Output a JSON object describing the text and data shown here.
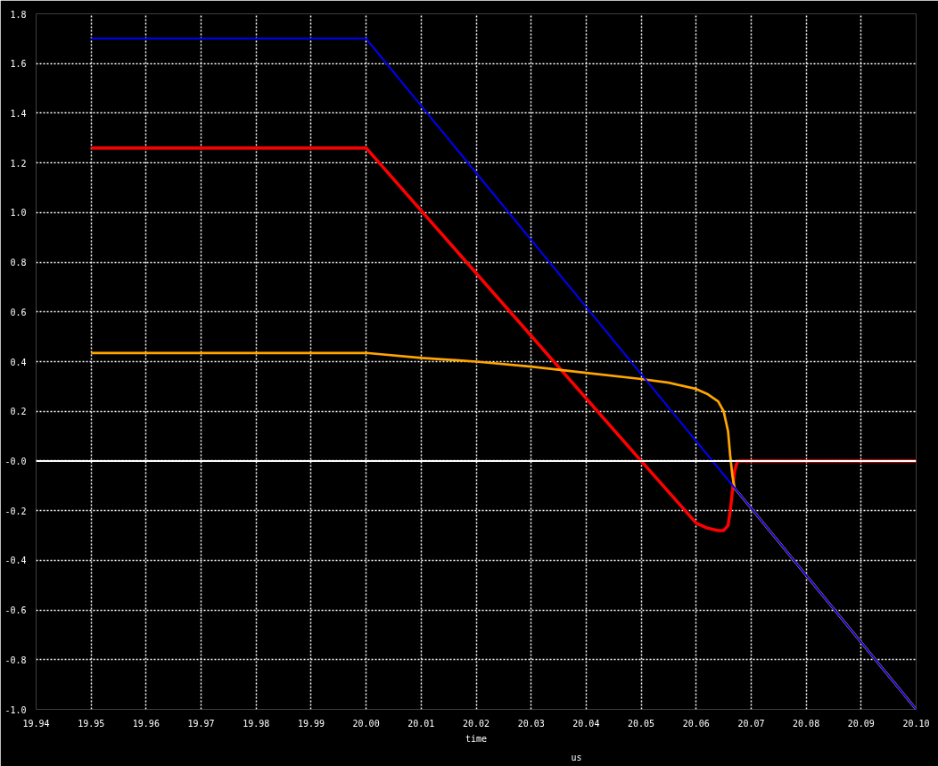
{
  "chart_data": {
    "type": "line",
    "xlabel": "time",
    "annotations": [
      "us"
    ],
    "xlim": [
      19.94,
      20.1
    ],
    "ylim": [
      -1.0,
      1.8
    ],
    "xticks": [
      {
        "value": 19.94,
        "label": "19.94"
      },
      {
        "value": 19.95,
        "label": "19.95"
      },
      {
        "value": 19.96,
        "label": "19.96"
      },
      {
        "value": 19.97,
        "label": "19.97"
      },
      {
        "value": 19.98,
        "label": "19.98"
      },
      {
        "value": 19.99,
        "label": "19.99"
      },
      {
        "value": 20.0,
        "label": "20.00"
      },
      {
        "value": 20.01,
        "label": "20.01"
      },
      {
        "value": 20.02,
        "label": "20.02"
      },
      {
        "value": 20.03,
        "label": "20.03"
      },
      {
        "value": 20.04,
        "label": "20.04"
      },
      {
        "value": 20.05,
        "label": "20.05"
      },
      {
        "value": 20.06,
        "label": "20.06"
      },
      {
        "value": 20.07,
        "label": "20.07"
      },
      {
        "value": 20.08,
        "label": "20.08"
      },
      {
        "value": 20.09,
        "label": "20.09"
      },
      {
        "value": 20.1,
        "label": "20.10"
      }
    ],
    "yticks": [
      {
        "value": -1.0,
        "label": "-1.0"
      },
      {
        "value": -0.8,
        "label": "-0.8"
      },
      {
        "value": -0.6,
        "label": "-0.6"
      },
      {
        "value": -0.4,
        "label": "-0.4"
      },
      {
        "value": -0.2,
        "label": "-0.2"
      },
      {
        "value": 0,
        "label": "-0.0"
      },
      {
        "value": 0.2,
        "label": "0.2"
      },
      {
        "value": 0.4,
        "label": "0.4"
      },
      {
        "value": 0.6,
        "label": "0.6"
      },
      {
        "value": 0.8,
        "label": "0.8"
      },
      {
        "value": 1.0,
        "label": "1.0"
      },
      {
        "value": 1.2,
        "label": "1.2"
      },
      {
        "value": 1.4,
        "label": "1.4"
      },
      {
        "value": 1.6,
        "label": "1.6"
      },
      {
        "value": 1.8,
        "label": "1.8"
      }
    ],
    "grid": true,
    "line_style": "solid",
    "ref_lines": [
      {
        "axis": "y",
        "value": 0,
        "color": "#ffffff"
      }
    ],
    "series": [
      {
        "color": "#ff0000",
        "x": [
          19.95,
          20.0,
          20.05,
          20.06,
          20.062,
          20.064,
          20.065,
          20.0658,
          20.0662,
          20.0666,
          20.067,
          20.0675,
          20.1
        ],
        "values": [
          1.26,
          1.26,
          0.0,
          -0.25,
          -0.27,
          -0.28,
          -0.28,
          -0.26,
          -0.2,
          -0.12,
          -0.04,
          0.0,
          0.0
        ]
      },
      {
        "color": "#ffa500",
        "x": [
          19.95,
          20.0,
          20.01,
          20.02,
          20.03,
          20.04,
          20.05,
          20.055,
          20.06,
          20.062,
          20.064,
          20.065,
          20.0658,
          20.0662,
          20.0666,
          20.067,
          20.068,
          20.1
        ],
        "values": [
          0.435,
          0.435,
          0.415,
          0.4,
          0.38,
          0.355,
          0.33,
          0.315,
          0.29,
          0.27,
          0.24,
          0.2,
          0.12,
          0.02,
          -0.06,
          -0.11,
          -0.136,
          -1.0
        ]
      },
      {
        "color": "#0000ff",
        "x": [
          19.95,
          20.0,
          20.1
        ],
        "values": [
          1.7,
          1.7,
          -1.0
        ]
      }
    ]
  }
}
